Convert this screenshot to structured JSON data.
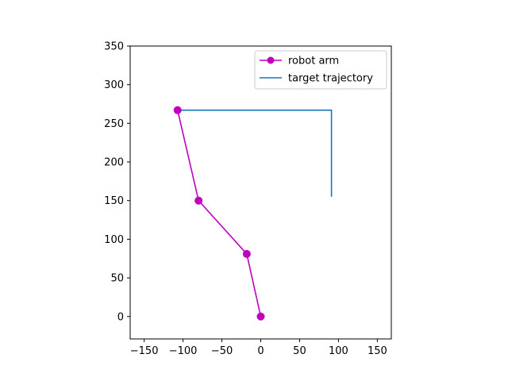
{
  "chart_data": {
    "type": "line",
    "title": "",
    "xlabel": "",
    "ylabel": "",
    "xlim": [
      -168,
      168
    ],
    "ylim": [
      -29,
      350
    ],
    "xticks": [
      -150,
      -100,
      -50,
      0,
      50,
      100,
      150
    ],
    "yticks": [
      0,
      50,
      100,
      150,
      200,
      250,
      300,
      350
    ],
    "grid": false,
    "legend_position": "top-right",
    "series": [
      {
        "name": "robot arm",
        "color": "#bf00bf",
        "marker": "circle",
        "x": [
          0,
          -18,
          -80,
          -107
        ],
        "y": [
          0,
          81,
          150,
          267
        ]
      },
      {
        "name": "target trajectory",
        "color": "#1f77b4",
        "marker": "none",
        "x": [
          -107,
          91,
          91
        ],
        "y": [
          267,
          267,
          155
        ]
      }
    ]
  }
}
